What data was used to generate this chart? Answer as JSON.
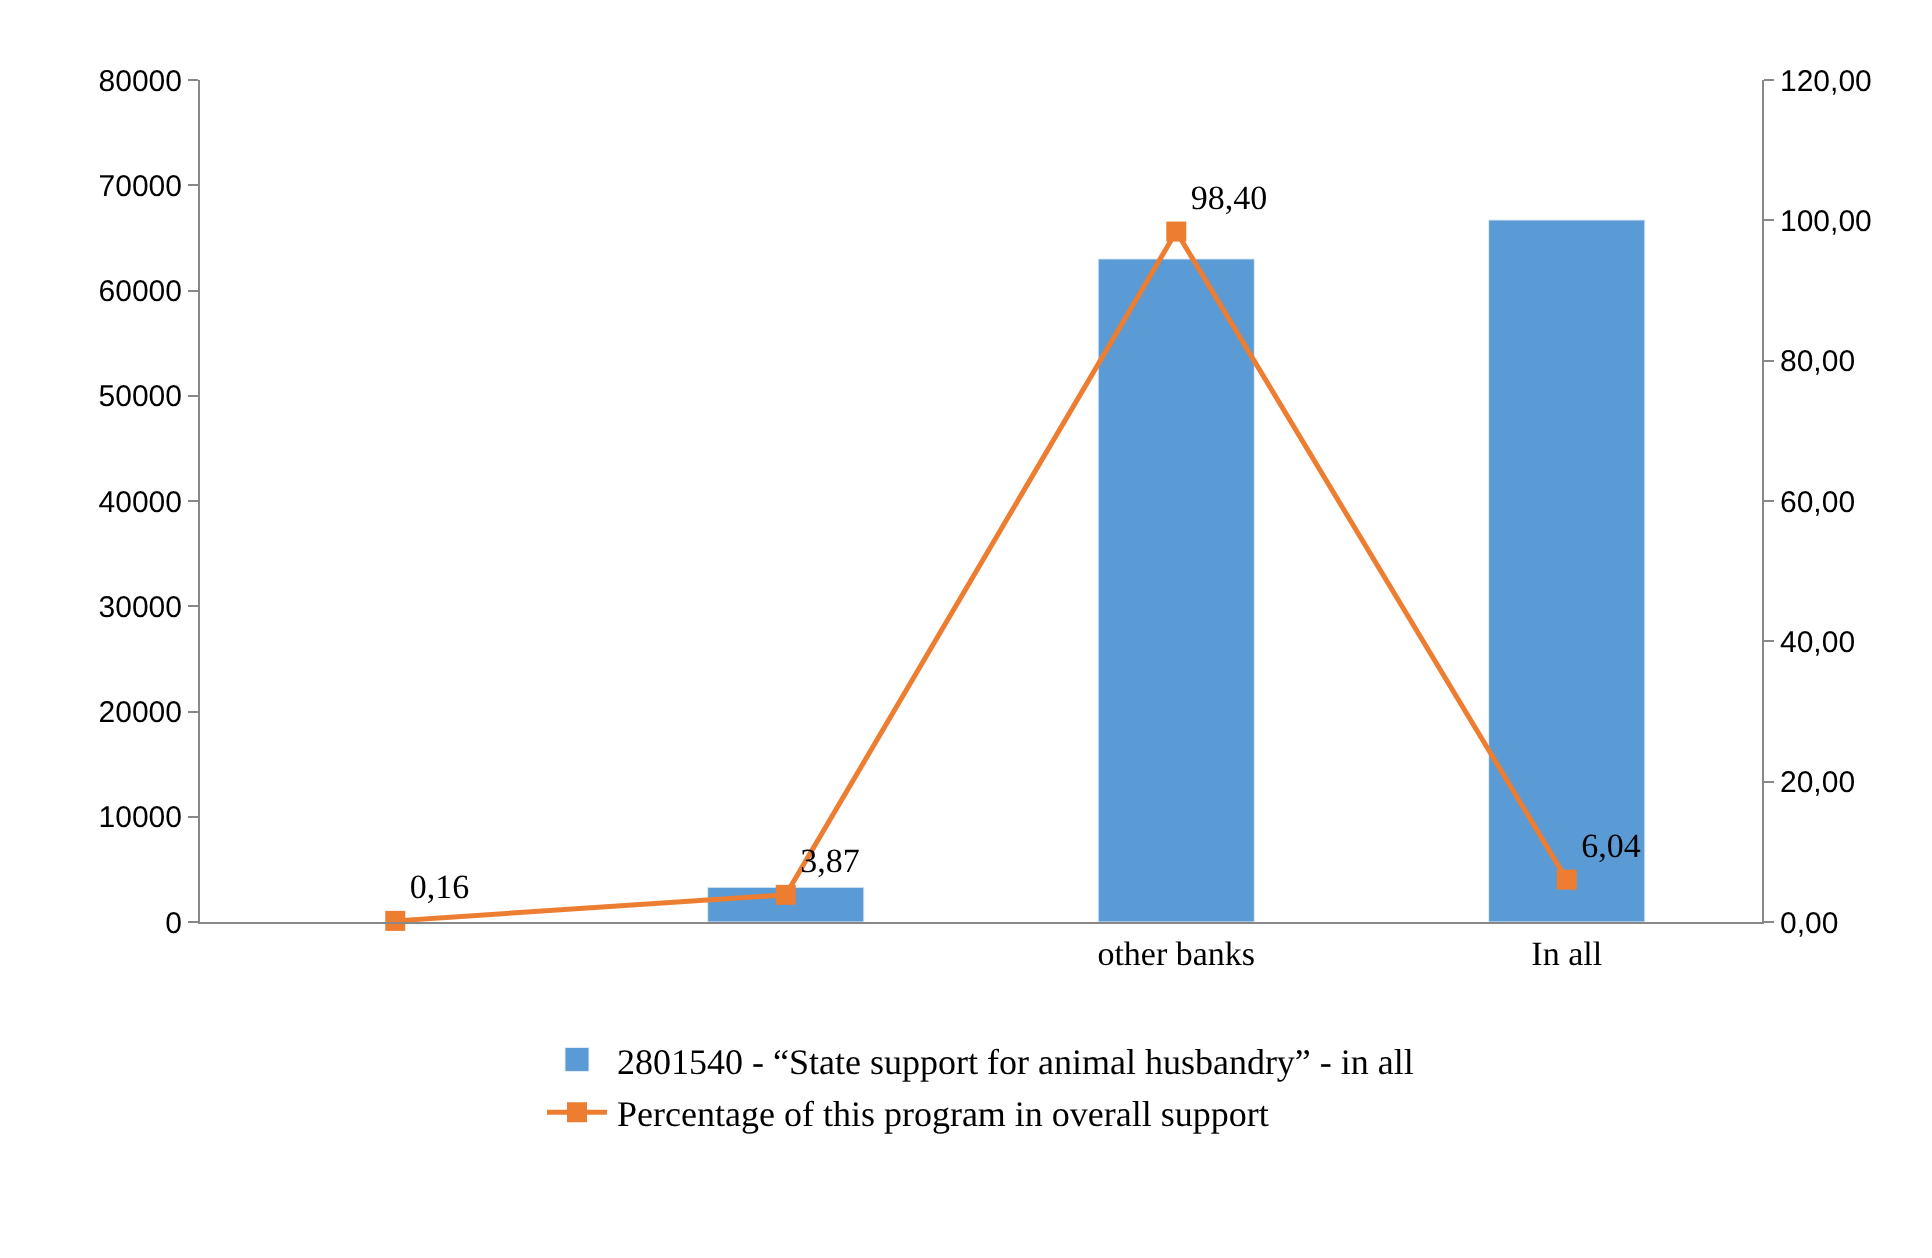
{
  "chart_data": {
    "type": "bar",
    "categories": [
      null,
      null,
      "other banks",
      "In all"
    ],
    "series": [
      {
        "name": "2801540 - “State support for animal husbandry” - in all",
        "color": "#5b9bd5",
        "values": [
          null,
          3300,
          63000,
          66700
        ]
      },
      {
        "name": "Percentage of this program in overall support",
        "type": "line",
        "axis": "y2",
        "color": "#ed7d31",
        "marker": "square",
        "values": [
          0.16,
          3.87,
          98.4,
          6.04
        ],
        "value_labels": [
          "0,16",
          "3,87",
          "98,40",
          "6,04"
        ]
      }
    ],
    "ylim": [
      0,
      80000
    ],
    "yticks": [
      0,
      10000,
      20000,
      30000,
      40000,
      50000,
      60000,
      70000,
      80000
    ],
    "y2lim": [
      0,
      120
    ],
    "y2ticks": [
      {
        "value": 0,
        "label": "0,00"
      },
      {
        "value": 20,
        "label": "20,00"
      },
      {
        "value": 40,
        "label": "40,00"
      },
      {
        "value": 60,
        "label": "60,00"
      },
      {
        "value": 80,
        "label": "80,00"
      },
      {
        "value": 100,
        "label": "100,00"
      },
      {
        "value": 120,
        "label": "120,00"
      }
    ],
    "grid": false,
    "legend": "bottom"
  }
}
